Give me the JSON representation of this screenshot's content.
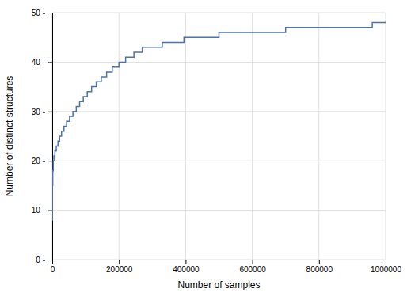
{
  "chart_data": {
    "type": "step",
    "xlabel": "Number of samples",
    "ylabel": "Number of distinct structures",
    "x": [
      0,
      500,
      1500,
      3000,
      5000,
      8000,
      12000,
      17000,
      22000,
      28000,
      35000,
      43000,
      52000,
      62000,
      72000,
      82000,
      93000,
      105000,
      118000,
      132000,
      147000,
      163000,
      180000,
      200000,
      220000,
      245000,
      270000,
      300000,
      330000,
      360000,
      395000,
      430000,
      465000,
      500000,
      540000,
      590000,
      645000,
      700000,
      760000,
      860000,
      960000,
      1000000
    ],
    "values": [
      8,
      15,
      18,
      20,
      21,
      22,
      23,
      24,
      25,
      26,
      27,
      28,
      29,
      30,
      31,
      32,
      33,
      34,
      35,
      36,
      37,
      38,
      39,
      40,
      41,
      42,
      43,
      43,
      44,
      44,
      45,
      45,
      45,
      46,
      46,
      46,
      46,
      47,
      47,
      47,
      48,
      48
    ],
    "color": "#4c72b0",
    "xlim": [
      0,
      1000000
    ],
    "ylim": [
      0,
      50
    ],
    "xticks": [
      0,
      200000,
      400000,
      600000,
      800000,
      1000000
    ],
    "yticks": [
      {
        "value": 0,
        "label": "0 -"
      },
      {
        "value": 10,
        "label": "10 -"
      },
      {
        "value": 20,
        "label": "20 -"
      },
      {
        "value": 30,
        "label": "30 -"
      },
      {
        "value": 40,
        "label": "40 -"
      },
      {
        "value": 50,
        "label": "50 -"
      }
    ],
    "grid": true
  }
}
